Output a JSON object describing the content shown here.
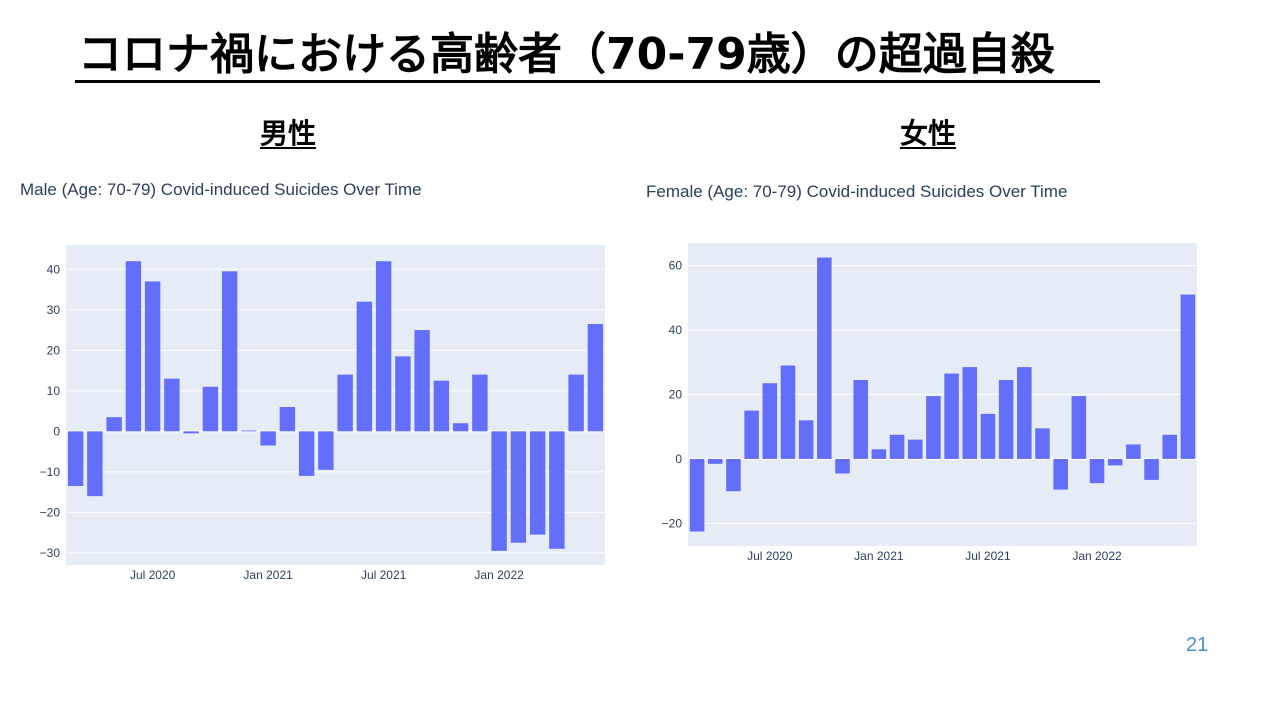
{
  "slide": {
    "title": "コロナ禍における高齢者（70-79歳）の超過自殺",
    "page_number": "21"
  },
  "headings": {
    "male": "男性",
    "female": "女性"
  },
  "colors": {
    "bar": "#636efa",
    "plot_bg": "#e5ecf6",
    "grid": "#ffffff",
    "text": "#2a3f5f"
  },
  "chart_data": [
    {
      "id": "male",
      "type": "bar",
      "title": "Male (Age: 70-79) Covid-induced Suicides Over Time",
      "x": [
        "2020-03",
        "2020-04",
        "2020-05",
        "2020-06",
        "2020-07",
        "2020-08",
        "2020-09",
        "2020-10",
        "2020-11",
        "2020-12",
        "2021-01",
        "2021-02",
        "2021-03",
        "2021-04",
        "2021-05",
        "2021-06",
        "2021-07",
        "2021-08",
        "2021-09",
        "2021-10",
        "2021-11",
        "2021-12",
        "2022-01",
        "2022-02",
        "2022-03",
        "2022-04",
        "2022-05",
        "2022-06"
      ],
      "values": [
        -13.5,
        -16,
        3.5,
        42,
        37,
        13,
        -0.5,
        11,
        39.5,
        0.2,
        -3.5,
        6,
        -11,
        -9.5,
        14,
        32,
        42,
        18.5,
        25,
        12.5,
        2,
        14,
        -29.5,
        -27.5,
        -25.5,
        -29,
        14,
        26.5
      ],
      "ylim": [
        -33,
        46
      ],
      "yticks": [
        -30,
        -20,
        -10,
        0,
        10,
        20,
        30,
        40
      ],
      "ytick_labels": [
        "−30",
        "−20",
        "−10",
        "0",
        "10",
        "20",
        "30",
        "40"
      ],
      "xticks": [
        {
          "index": 4,
          "label": "Jul 2020"
        },
        {
          "index": 10,
          "label": "Jan 2021"
        },
        {
          "index": 16,
          "label": "Jul 2021"
        },
        {
          "index": 22,
          "label": "Jan 2022"
        }
      ],
      "grid": true
    },
    {
      "id": "female",
      "type": "bar",
      "title": "Female (Age: 70-79) Covid-induced Suicides Over Time",
      "x": [
        "2020-03",
        "2020-04",
        "2020-05",
        "2020-06",
        "2020-07",
        "2020-08",
        "2020-09",
        "2020-10",
        "2020-11",
        "2020-12",
        "2021-01",
        "2021-02",
        "2021-03",
        "2021-04",
        "2021-05",
        "2021-06",
        "2021-07",
        "2021-08",
        "2021-09",
        "2021-10",
        "2021-11",
        "2021-12",
        "2022-01",
        "2022-02",
        "2022-03",
        "2022-04",
        "2022-05",
        "2022-06"
      ],
      "values": [
        -22.5,
        -1.5,
        -10,
        15,
        23.5,
        29,
        12,
        62.5,
        -4.5,
        24.5,
        3,
        7.5,
        6,
        19.5,
        26.5,
        28.5,
        14,
        24.5,
        28.5,
        9.5,
        -9.5,
        19.5,
        -7.5,
        -2,
        4.5,
        -6.5,
        7.5,
        51
      ],
      "ylim": [
        -27,
        67
      ],
      "yticks": [
        -20,
        0,
        20,
        40,
        60
      ],
      "ytick_labels": [
        "−20",
        "0",
        "20",
        "40",
        "60"
      ],
      "xticks": [
        {
          "index": 4,
          "label": "Jul 2020"
        },
        {
          "index": 10,
          "label": "Jan 2021"
        },
        {
          "index": 16,
          "label": "Jul 2021"
        },
        {
          "index": 22,
          "label": "Jan 2022"
        }
      ],
      "grid": true
    }
  ]
}
